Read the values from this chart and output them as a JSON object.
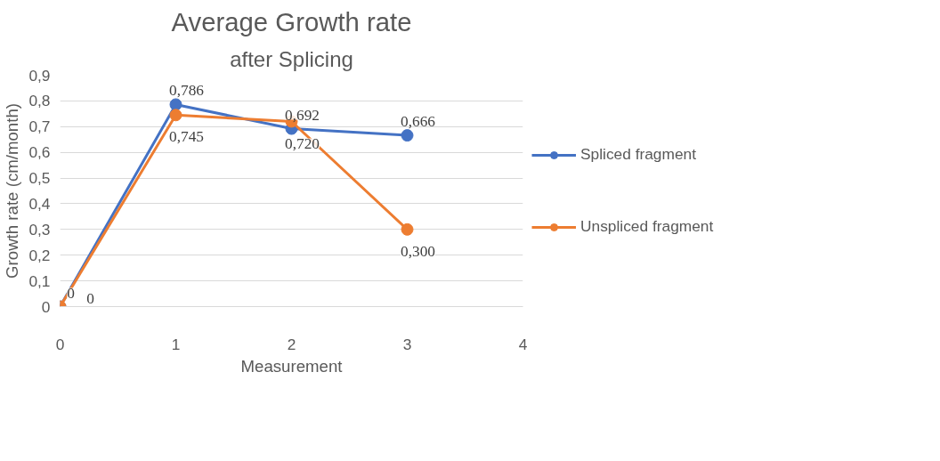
{
  "chart_data": {
    "type": "line",
    "title": "Average Growth rate",
    "subtitle": "after Splicing",
    "xlabel": "Measurement",
    "ylabel": "Growth rate (cm/month)",
    "x": [
      0,
      1,
      2,
      3
    ],
    "series": [
      {
        "name": "Spliced fragment",
        "color": "#4472c4",
        "values": [
          0,
          0.786,
          0.692,
          0.666
        ],
        "value_labels": [
          "0",
          "0,786",
          "0,692",
          "0,666"
        ]
      },
      {
        "name": "Unspliced fragment",
        "color": "#ed7d31",
        "values": [
          0,
          0.745,
          0.72,
          0.3
        ],
        "value_labels": [
          "0",
          "0,745",
          "0,720",
          "0,300"
        ]
      }
    ],
    "xlim": [
      0,
      4
    ],
    "xticks": [
      0,
      1,
      2,
      3,
      4
    ],
    "ylim": [
      0,
      0.9
    ],
    "yticks": [
      0,
      {
        "value": 0.1,
        "label": "0,1"
      },
      {
        "value": 0.2,
        "label": "0,2"
      },
      {
        "value": 0.3,
        "label": "0,3"
      },
      {
        "value": 0.4,
        "label": "0,4"
      },
      {
        "value": 0.5,
        "label": "0,5"
      },
      {
        "value": 0.6,
        "label": "0,6"
      },
      {
        "value": 0.7,
        "label": "0,7"
      },
      {
        "value": 0.8,
        "label": "0,8"
      },
      {
        "value": 0.9,
        "label": "0,9"
      }
    ],
    "grid": "y",
    "legend": "right",
    "marker": "circle",
    "line_style": "solid"
  }
}
